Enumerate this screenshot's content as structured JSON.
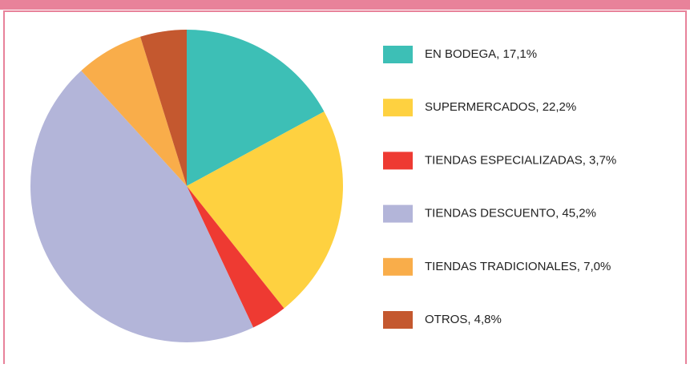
{
  "chart_data": {
    "type": "pie",
    "labels": [
      "EN BODEGA, 17,1%",
      "SUPERMERCADOS, 22,2%",
      "TIENDAS ESPECIALIZADAS, 3,7%",
      "TIENDAS DESCUENTO, 45,2%",
      "TIENDAS TRADICIONALES, 7,0%",
      "OTROS, 4,8%"
    ],
    "values": [
      17.1,
      22.2,
      3.7,
      45.2,
      7.0,
      4.8
    ],
    "colors": [
      "#3dbfb6",
      "#fed140",
      "#ee3a32",
      "#b3b5d9",
      "#f9ad4a",
      "#c4582f"
    ],
    "legend": "right"
  }
}
